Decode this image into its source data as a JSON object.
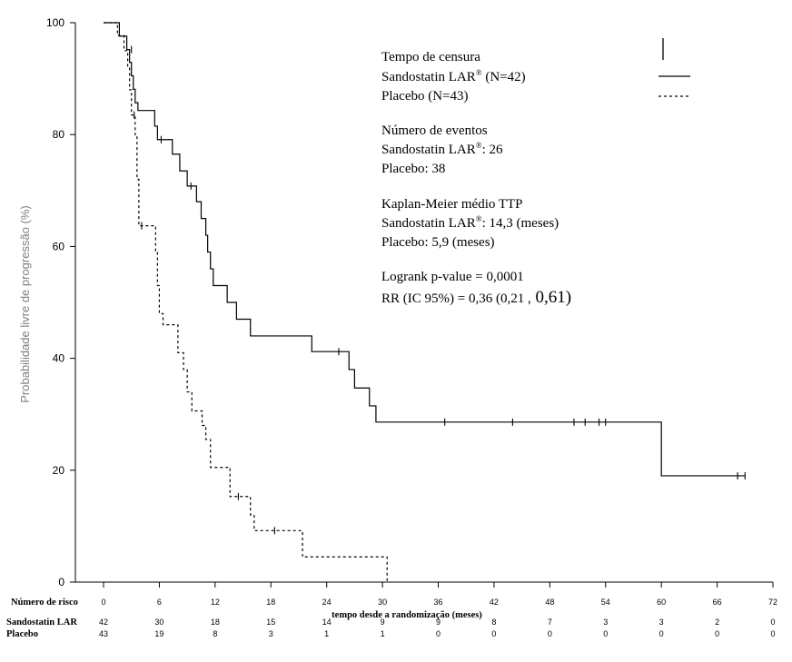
{
  "chart_data": {
    "type": "line",
    "ylabel": "Probabilidade livre de progressão    (%)",
    "xlabel": "tempo desde a randomização (meses)",
    "xlim": [
      0,
      72
    ],
    "ylim": [
      0,
      100
    ],
    "xticks": [
      0,
      6,
      12,
      18,
      24,
      30,
      36,
      42,
      48,
      54,
      60,
      66,
      72
    ],
    "yticks": [
      0,
      20,
      40,
      60,
      80,
      100
    ],
    "grid": false,
    "legend_position": "top-right",
    "series": [
      {
        "name": "Sandostatin LAR® (N=42)",
        "line_style": "solid",
        "color": "#000000",
        "steps": [
          [
            0,
            100
          ],
          [
            1.7,
            97.6
          ],
          [
            2.5,
            95.2
          ],
          [
            2.8,
            92.9
          ],
          [
            3,
            90.5
          ],
          [
            3.2,
            88.1
          ],
          [
            3.4,
            85.7
          ],
          [
            3.7,
            84.3
          ],
          [
            5.5,
            81.5
          ],
          [
            5.8,
            79.1
          ],
          [
            7.4,
            76.5
          ],
          [
            8.2,
            73.5
          ],
          [
            9,
            70.8
          ],
          [
            10,
            68
          ],
          [
            10.5,
            65
          ],
          [
            11,
            62
          ],
          [
            11.2,
            59
          ],
          [
            11.5,
            56
          ],
          [
            11.8,
            53
          ],
          [
            13.3,
            50
          ],
          [
            14.3,
            47
          ],
          [
            15.8,
            44
          ],
          [
            22.4,
            41.2
          ],
          [
            26.4,
            38
          ],
          [
            27,
            34.7
          ],
          [
            28.6,
            31.5
          ],
          [
            29.3,
            28.6
          ],
          [
            60,
            19
          ]
        ],
        "end_x": 69,
        "censor_marks": [
          [
            3,
            95.2
          ],
          [
            6.2,
            79.1
          ],
          [
            9.4,
            70.8
          ],
          [
            25.3,
            41.2
          ],
          [
            36.7,
            28.6
          ],
          [
            44,
            28.6
          ],
          [
            50.6,
            28.6
          ],
          [
            51.8,
            28.6
          ],
          [
            53.3,
            28.6
          ],
          [
            54,
            28.6
          ],
          [
            68.2,
            19
          ],
          [
            69,
            19
          ]
        ]
      },
      {
        "name": "Placebo (N=43)",
        "line_style": "dashed",
        "color": "#000000",
        "steps": [
          [
            0,
            100
          ],
          [
            1.5,
            97.7
          ],
          [
            2.2,
            95
          ],
          [
            2.6,
            92
          ],
          [
            2.8,
            88
          ],
          [
            3,
            83.5
          ],
          [
            3.4,
            80
          ],
          [
            3.6,
            72
          ],
          [
            3.8,
            63.7
          ],
          [
            5.6,
            59
          ],
          [
            5.8,
            53
          ],
          [
            6,
            48
          ],
          [
            6.4,
            46
          ],
          [
            8,
            41
          ],
          [
            8.6,
            38
          ],
          [
            9,
            34
          ],
          [
            9.5,
            30.6
          ],
          [
            10.6,
            28
          ],
          [
            11,
            25.5
          ],
          [
            11.5,
            20.5
          ],
          [
            13.6,
            15.3
          ],
          [
            15.8,
            12
          ],
          [
            16.2,
            9.2
          ],
          [
            21.4,
            4.5
          ],
          [
            30.5,
            0
          ]
        ],
        "end_x": 30.5,
        "censor_marks": [
          [
            3.3,
            83.5
          ],
          [
            4.1,
            63.7
          ],
          [
            14.5,
            15.3
          ],
          [
            18.4,
            9.2
          ]
        ]
      }
    ],
    "risk_table": {
      "header": "Número de risco",
      "x": [
        0,
        6,
        12,
        18,
        24,
        30,
        36,
        42,
        48,
        54,
        60,
        66,
        72
      ],
      "rows": [
        {
          "label": "Sandostatin LAR",
          "values": [
            "42",
            "30",
            "18",
            "15",
            "14",
            "9",
            "9",
            "8",
            "7",
            "3",
            "3",
            "2",
            "0"
          ]
        },
        {
          "label": "Placebo",
          "values": [
            "43",
            "19",
            "8",
            "3",
            "1",
            "1",
            "0",
            "0",
            "0",
            "0",
            "0",
            "0",
            "0"
          ]
        }
      ]
    },
    "legend": {
      "censor_title": "Tempo de censura",
      "sandostatin_label": "Sandostatin LAR",
      "sandostatin_n": " (N=42)",
      "placebo_label": "Placebo (N=43)",
      "events_title": "Número de eventos",
      "events_sandostatin_label": "Sandostatin LAR",
      "events_sandostatin_value": ": 26",
      "events_placebo": "Placebo: 38",
      "km_title": "Kaplan-Meier médio TTP",
      "km_sandostatin_label": "Sandostatin LAR",
      "km_sandostatin_value": ": 14,3 (meses)",
      "km_placebo": "Placebo: 5,9 (meses)",
      "logrank": "Logrank p-value = 0,0001",
      "rr_prefix": "RR (IC 95%) = 0,36 (0,21 ,",
      "rr_suffix": " 0,61)",
      "registered_mark": "®"
    }
  }
}
